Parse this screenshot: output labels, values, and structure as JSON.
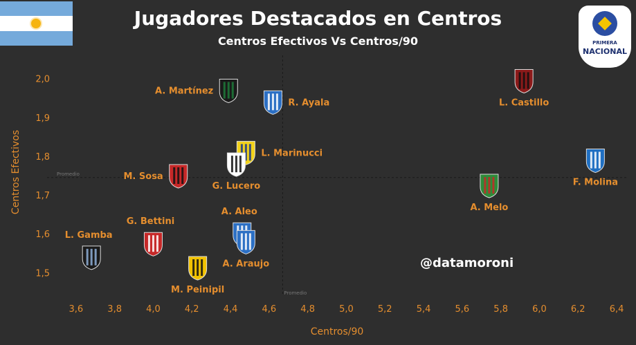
{
  "title": "Jugadores Destacados en Centros",
  "subtitle": "Centros Efectivos Vs Centros/90",
  "watermark": "@datamoroni",
  "badge": {
    "line1": "PRIMERA",
    "line2": "NACIONAL"
  },
  "colors": {
    "background": "#2e2e2e",
    "accent": "#e58e2e",
    "text": "#ffffff",
    "reference_line": "#1a1a1a"
  },
  "chart_data": {
    "type": "scatter",
    "title": "Jugadores Destacados en Centros",
    "subtitle": "Centros Efectivos Vs Centros/90",
    "xlabel": "Centros/90",
    "ylabel": "Centros Efectivos",
    "xlim": [
      3.45,
      6.45
    ],
    "ylim": [
      1.44,
      2.06
    ],
    "xticks": [
      "3,6",
      "3,8",
      "4,0",
      "4,2",
      "4,4",
      "4,6",
      "4,8",
      "5,0",
      "5,2",
      "5,4",
      "5,6",
      "5,8",
      "6,0",
      "6,2",
      "6,4"
    ],
    "xtick_values": [
      3.6,
      3.8,
      4.0,
      4.2,
      4.4,
      4.6,
      4.8,
      5.0,
      5.2,
      5.4,
      5.6,
      5.8,
      6.0,
      6.2,
      6.4
    ],
    "yticks": [
      "1,5",
      "1,6",
      "1,7",
      "1,8",
      "1,9",
      "2,0"
    ],
    "ytick_values": [
      1.5,
      1.6,
      1.7,
      1.8,
      1.9,
      2.0
    ],
    "grid": false,
    "reference_lines": {
      "x": 4.67,
      "y": 1.745,
      "label": "Promedio"
    },
    "points": [
      {
        "name": "A. Martínez",
        "x": 4.39,
        "y": 1.97,
        "club_icon": "canch-crest-icon",
        "colors": [
          "#1a1a1a",
          "#1f7a3a"
        ],
        "label_side": "left"
      },
      {
        "name": "R. Ayala",
        "x": 4.62,
        "y": 1.94,
        "club_icon": "blue-crest-icon",
        "colors": [
          "#2b6fc4",
          "#ffffff"
        ],
        "label_side": "right"
      },
      {
        "name": "L. Castillo",
        "x": 5.92,
        "y": 1.995,
        "club_icon": "chevron-crest-icon",
        "colors": [
          "#8b1a1a",
          "#111111"
        ],
        "label_side": "below"
      },
      {
        "name": "L. Marinucci",
        "x": 4.48,
        "y": 1.81,
        "club_icon": "atlanta-crest-icon",
        "colors": [
          "#f2d21b",
          "#1c3a8a"
        ],
        "label_side": "right"
      },
      {
        "name": "G. Lucero",
        "x": 4.43,
        "y": 1.78,
        "club_icon": "striped-crest-icon",
        "colors": [
          "#ffffff",
          "#111111"
        ],
        "label_side": "below"
      },
      {
        "name": "M. Sosa",
        "x": 4.13,
        "y": 1.75,
        "club_icon": "red-black-crest-icon",
        "colors": [
          "#c62828",
          "#111111"
        ],
        "label_side": "left"
      },
      {
        "name": "F. Molina",
        "x": 6.29,
        "y": 1.79,
        "club_icon": "gimnasia-crest-icon",
        "colors": [
          "#1f6fc2",
          "#ffffff"
        ],
        "label_side": "below"
      },
      {
        "name": "A. Melo",
        "x": 5.74,
        "y": 1.725,
        "club_icon": "caa-crest-icon",
        "colors": [
          "#2e8b3a",
          "#c62828"
        ],
        "label_side": "below"
      },
      {
        "name": "A. Aleo",
        "x": 4.46,
        "y": 1.6,
        "club_icon": "caa-blue-crest-icon",
        "colors": [
          "#2b6fc4",
          "#ffffff"
        ],
        "label_side": "above"
      },
      {
        "name": "A. Araujo",
        "x": 4.48,
        "y": 1.58,
        "club_icon": "caa-blue-crest-icon",
        "colors": [
          "#2b6fc4",
          "#ffffff"
        ],
        "label_side": "below"
      },
      {
        "name": "G. Bettini",
        "x": 4.0,
        "y": 1.575,
        "club_icon": "red-white-crest-icon",
        "colors": [
          "#c62828",
          "#ffffff"
        ],
        "label_side": "above"
      },
      {
        "name": "L. Gamba",
        "x": 3.68,
        "y": 1.54,
        "club_icon": "almagro-crest-icon",
        "colors": [
          "#1a1a1a",
          "#8fb0d8"
        ],
        "label_side": "above"
      },
      {
        "name": "M. Peinipil",
        "x": 4.23,
        "y": 1.513,
        "club_icon": "yellow-black-crest-icon",
        "colors": [
          "#f2c200",
          "#111111"
        ],
        "label_side": "below"
      }
    ]
  }
}
